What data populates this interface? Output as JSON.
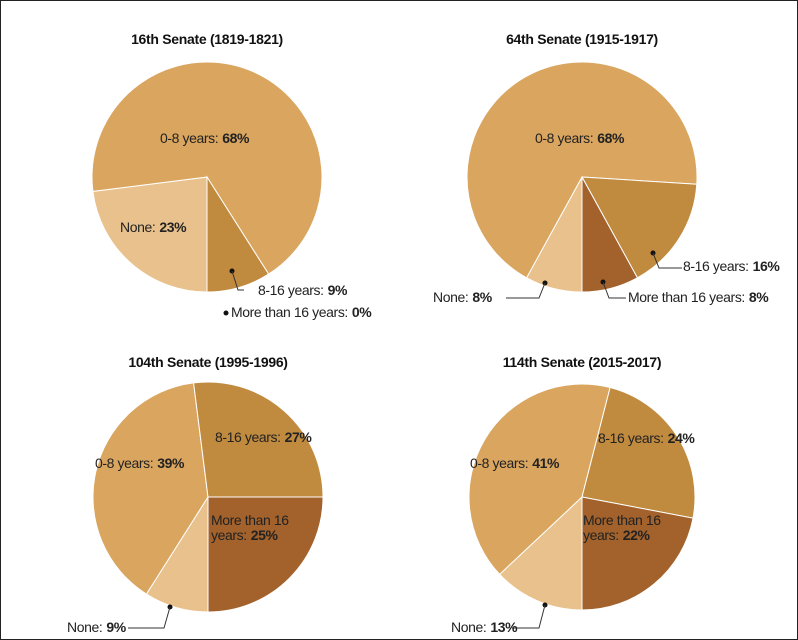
{
  "chart_data": [
    {
      "type": "pie",
      "title": "16th Senate (1819-1821)",
      "categories": [
        "None:",
        "0-8 years:",
        "8-16 years:",
        "More than 16 years:"
      ],
      "values": [
        23,
        68,
        9,
        0
      ],
      "value_labels": [
        "23%",
        "68%",
        "9%",
        "0%"
      ],
      "colors": [
        "#e8c18c",
        "#d9a55f",
        "#c08a3f",
        "#a3622b"
      ]
    },
    {
      "type": "pie",
      "title": "64th Senate (1915-1917)",
      "categories": [
        "None:",
        "0-8 years:",
        "8-16 years:",
        "More than 16 years:"
      ],
      "values": [
        8,
        68,
        16,
        8
      ],
      "value_labels": [
        "8%",
        "68%",
        "16%",
        "8%"
      ],
      "colors": [
        "#e8c18c",
        "#d9a55f",
        "#c08a3f",
        "#a3622b"
      ]
    },
    {
      "type": "pie",
      "title": "104th Senate (1995-1996)",
      "categories": [
        "None:",
        "0-8 years:",
        "8-16 years:",
        "More than 16 years:"
      ],
      "values": [
        9,
        39,
        27,
        25
      ],
      "value_labels": [
        "9%",
        "39%",
        "27%",
        "25%"
      ],
      "colors": [
        "#e8c18c",
        "#d9a55f",
        "#c08a3f",
        "#a3622b"
      ]
    },
    {
      "type": "pie",
      "title": "114th Senate (2015-2017)",
      "categories": [
        "None:",
        "0-8 years:",
        "8-16 years:",
        "More than 16 years:"
      ],
      "values": [
        13,
        41,
        24,
        22
      ],
      "value_labels": [
        "13%",
        "41%",
        "24%",
        "22%"
      ],
      "colors": [
        "#e8c18c",
        "#d9a55f",
        "#c08a3f",
        "#a3622b"
      ]
    }
  ]
}
